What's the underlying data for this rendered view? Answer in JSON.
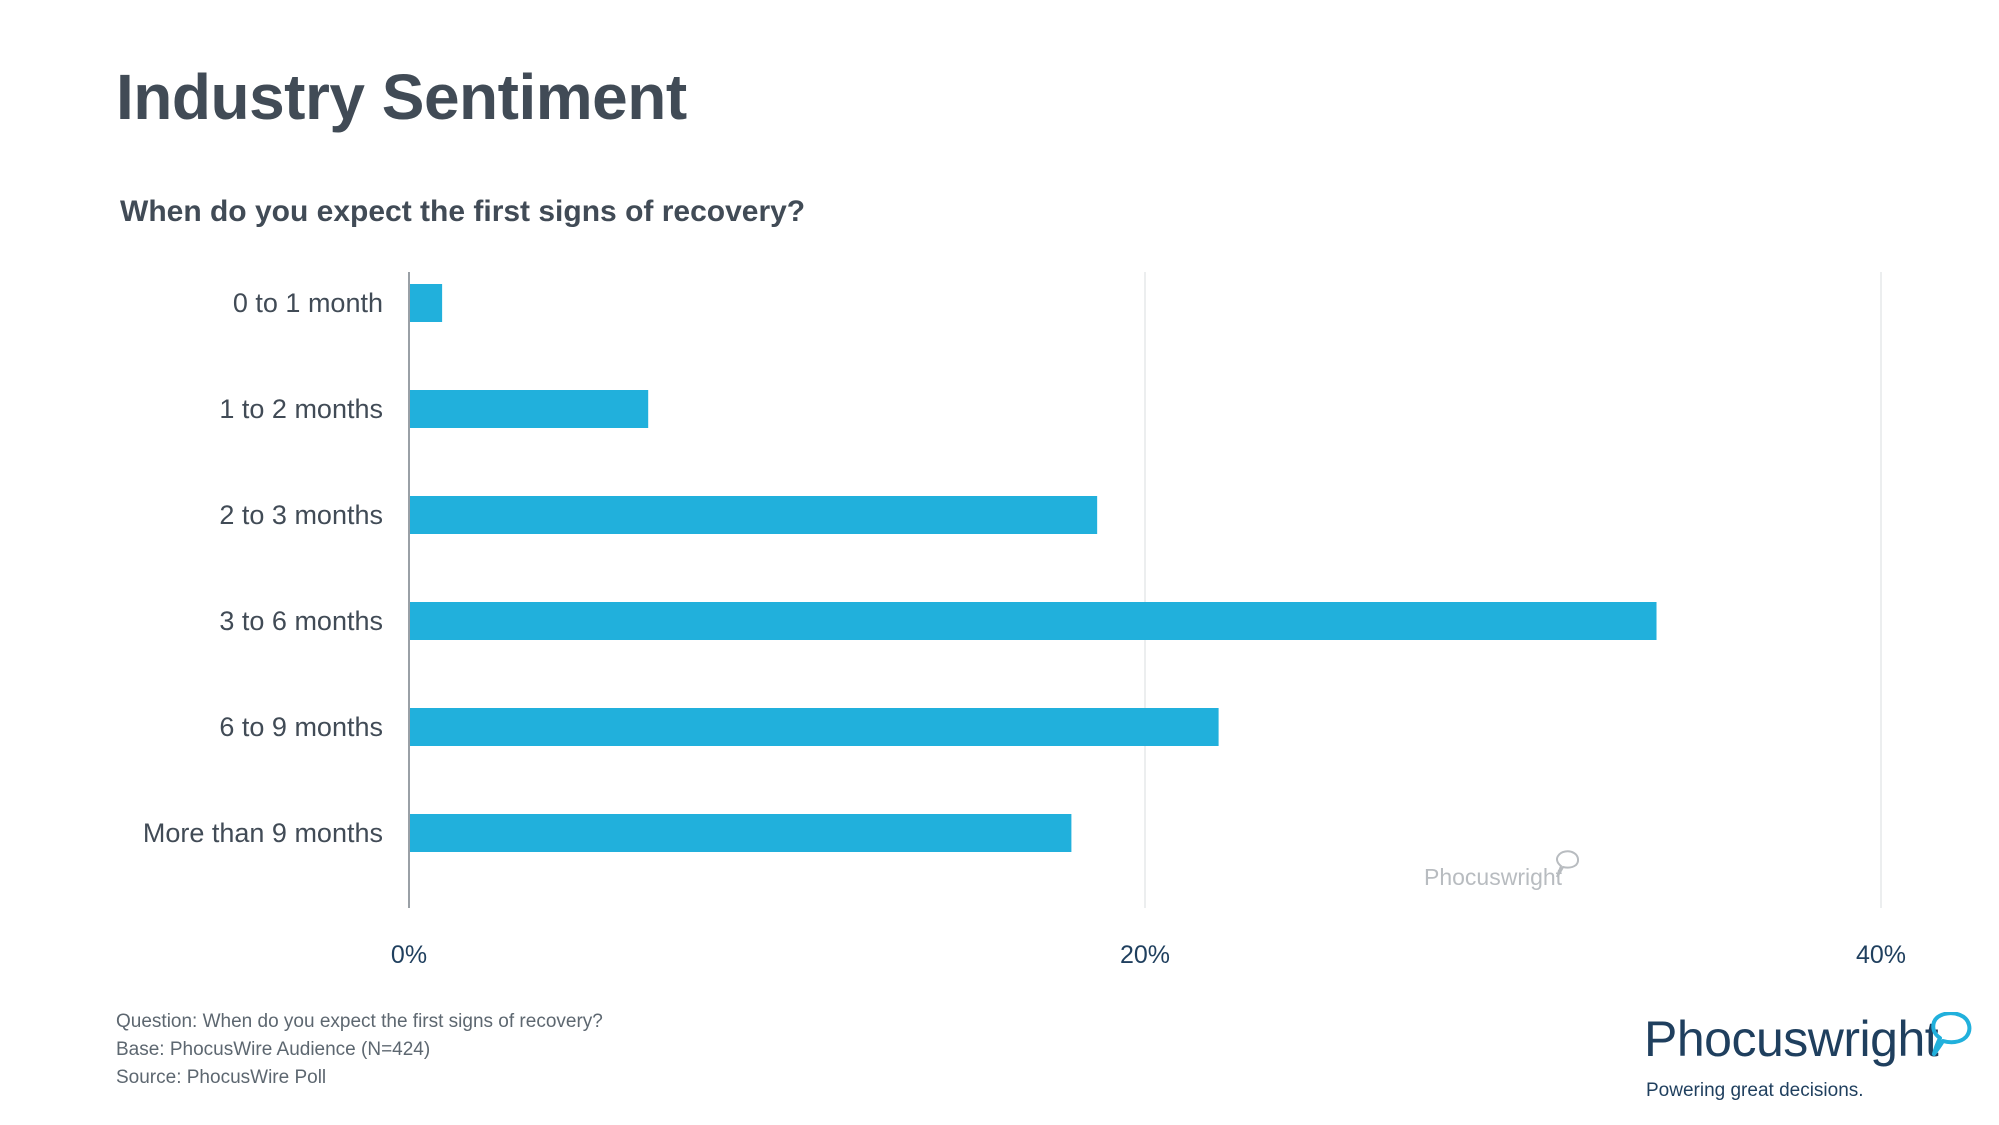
{
  "header": {
    "title": "Industry Sentiment",
    "subtitle": "When do you expect the first signs of recovery?"
  },
  "chart_data": {
    "type": "bar",
    "orientation": "horizontal",
    "categories": [
      "0 to 1 month",
      "1 to 2 months",
      "2 to 3 months",
      "3 to 6 months",
      "6 to 9 months",
      "More than 9 months"
    ],
    "values": [
      0.9,
      6.5,
      18.7,
      33.9,
      22.0,
      18.0
    ],
    "value_unit": "%",
    "xlim": [
      0,
      40
    ],
    "xticks": [
      "0%",
      "20%",
      "40%"
    ],
    "xtick_values": [
      0,
      20,
      40
    ],
    "grid": true,
    "bar_color": "#21b0dc",
    "watermark": "Phocuswright"
  },
  "footnotes": {
    "question": "Question: When do you expect the first signs of recovery?",
    "base": "Base: PhocusWire Audience (N=424)",
    "source": "Source: PhocusWire Poll"
  },
  "brand": {
    "name": "Phocuswright",
    "tagline": "Powering great decisions.",
    "accent_color": "#21b0dc",
    "text_color": "#1f3f5e"
  }
}
